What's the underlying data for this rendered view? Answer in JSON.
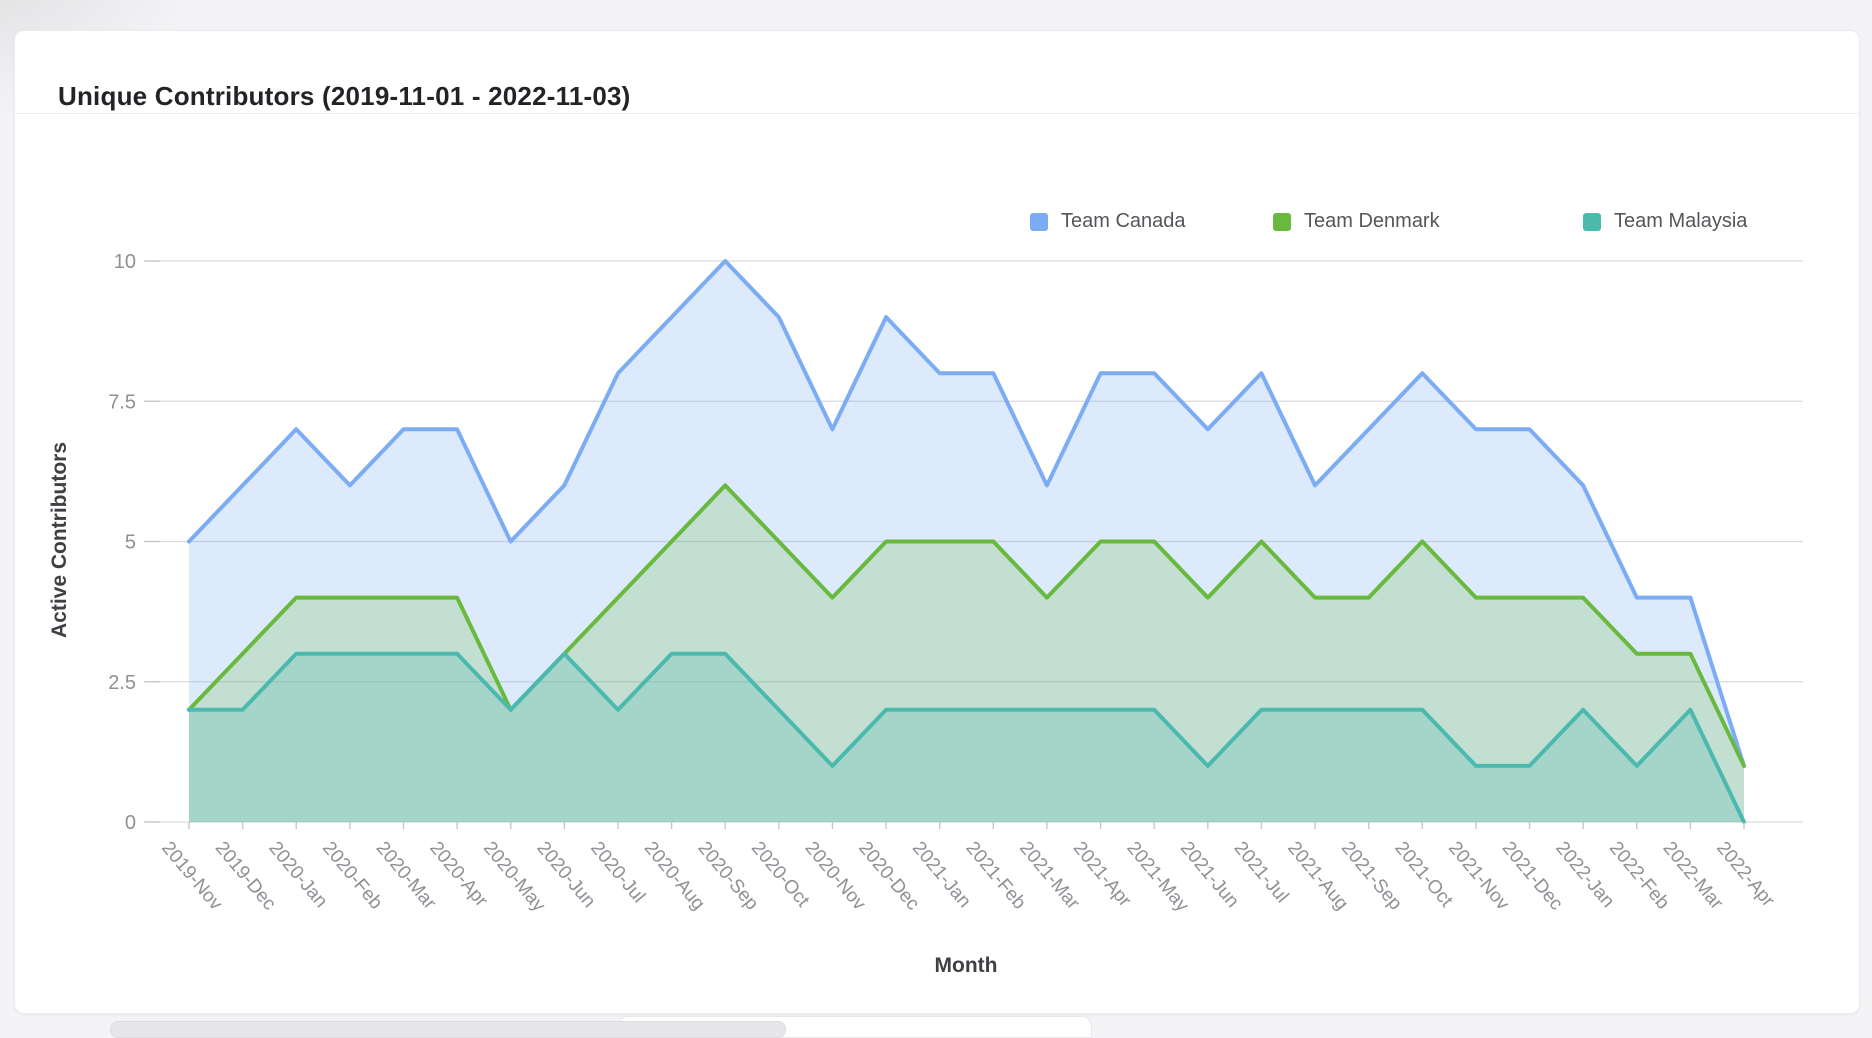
{
  "card": {
    "title": "Unique Contributors (2019-11-01 - 2022-11-03)"
  },
  "legend": [
    {
      "label": "Team Canada",
      "color": "#7CACF4"
    },
    {
      "label": "Team Denmark",
      "color": "#69B93E"
    },
    {
      "label": "Team Malaysia",
      "color": "#4CB9AF"
    }
  ],
  "chart_data": {
    "type": "area",
    "title": "Unique Contributors (2019-11-01 - 2022-11-03)",
    "xlabel": "Month",
    "ylabel": "Active Contributors",
    "ylim": [
      0,
      10
    ],
    "yticks": [
      0,
      2.5,
      5,
      7.5,
      10
    ],
    "grid": true,
    "legend_position": "top-right",
    "categories": [
      "2019-Nov",
      "2019-Dec",
      "2020-Jan",
      "2020-Feb",
      "2020-Mar",
      "2020-Apr",
      "2020-May",
      "2020-Jun",
      "2020-Jul",
      "2020-Aug",
      "2020-Sep",
      "2020-Oct",
      "2020-Nov",
      "2020-Dec",
      "2021-Jan",
      "2021-Feb",
      "2021-Mar",
      "2021-Apr",
      "2021-May",
      "2021-Jun",
      "2021-Jul",
      "2021-Aug",
      "2021-Sep",
      "2021-Oct",
      "2021-Nov",
      "2021-Dec",
      "2022-Jan",
      "2022-Feb",
      "2022-Mar",
      "2022-Apr"
    ],
    "series": [
      {
        "name": "Team Canada",
        "color": "#7CACF4",
        "fill": "rgba(121,172,243,0.25)",
        "values": [
          5,
          6,
          7,
          6,
          7,
          7,
          5,
          6,
          8,
          9,
          10,
          9,
          7,
          9,
          8,
          8,
          6,
          8,
          8,
          7,
          8,
          6,
          7,
          8,
          7,
          7,
          6,
          4,
          4,
          1
        ]
      },
      {
        "name": "Team Denmark",
        "color": "#69B93E",
        "fill": "rgba(105,185,62,0.22)",
        "values": [
          2,
          3,
          4,
          4,
          4,
          4,
          2,
          3,
          4,
          5,
          6,
          5,
          4,
          5,
          5,
          5,
          4,
          5,
          5,
          4,
          5,
          4,
          4,
          5,
          4,
          4,
          4,
          3,
          3,
          1
        ]
      },
      {
        "name": "Team Malaysia",
        "color": "#4CB9AF",
        "fill": "rgba(76,185,175,0.25)",
        "values": [
          2,
          2,
          3,
          3,
          3,
          3,
          2,
          3,
          2,
          3,
          3,
          2,
          1,
          2,
          2,
          2,
          2,
          2,
          2,
          1,
          2,
          2,
          2,
          2,
          1,
          1,
          2,
          1,
          2,
          0
        ]
      }
    ],
    "axis_text_color": "#8e9095",
    "axis_title_color": "#3e4044",
    "grid_color": "#d9dadc"
  },
  "bottom": {
    "scrollbar": "horizontal-scrollbar"
  }
}
